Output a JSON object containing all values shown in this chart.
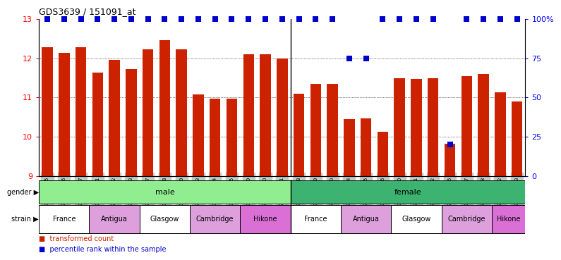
{
  "title": "GDS3639 / 151091_at",
  "samples": [
    "GSM231205",
    "GSM231206",
    "GSM231207",
    "GSM231211",
    "GSM231212",
    "GSM231213",
    "GSM231217",
    "GSM231218",
    "GSM231219",
    "GSM231223",
    "GSM231224",
    "GSM231225",
    "GSM231229",
    "GSM231230",
    "GSM231231",
    "GSM231208",
    "GSM231209",
    "GSM231210",
    "GSM231214",
    "GSM231215",
    "GSM231216",
    "GSM231220",
    "GSM231221",
    "GSM231222",
    "GSM231226",
    "GSM231227",
    "GSM231228",
    "GSM231232",
    "GSM231233"
  ],
  "values": [
    12.28,
    12.13,
    12.28,
    11.63,
    11.95,
    11.73,
    12.22,
    12.45,
    12.22,
    11.07,
    10.97,
    10.97,
    12.1,
    12.1,
    12.0,
    11.1,
    11.35,
    11.35,
    10.45,
    10.47,
    10.13,
    11.48,
    11.47,
    11.48,
    9.82,
    11.55,
    11.6,
    11.13,
    10.9
  ],
  "percentile": [
    100,
    100,
    100,
    100,
    100,
    100,
    100,
    100,
    100,
    100,
    100,
    100,
    100,
    100,
    100,
    100,
    100,
    100,
    75,
    75,
    100,
    100,
    100,
    100,
    20,
    100,
    100,
    100,
    100
  ],
  "bar_color": "#CC2200",
  "dot_color": "#0000CC",
  "ylim_left": [
    9,
    13
  ],
  "ylim_right": [
    0,
    100
  ],
  "yticks_left": [
    9,
    10,
    11,
    12,
    13
  ],
  "yticks_right_vals": [
    0,
    25,
    50,
    75,
    100
  ],
  "yticks_right_labels": [
    "0",
    "25",
    "50",
    "75",
    "100%"
  ],
  "bar_width": 0.65,
  "dot_size": 40,
  "male_count": 15,
  "gender_groups": [
    {
      "label": "male",
      "start": 0,
      "end": 15,
      "color": "#90EE90"
    },
    {
      "label": "female",
      "start": 15,
      "end": 29,
      "color": "#3CB371"
    }
  ],
  "strain_groups": [
    {
      "label": "France",
      "start": 0,
      "end": 3,
      "color": "#FFFFFF"
    },
    {
      "label": "Antigua",
      "start": 3,
      "end": 6,
      "color": "#DDA0DD"
    },
    {
      "label": "Glasgow",
      "start": 6,
      "end": 9,
      "color": "#FFFFFF"
    },
    {
      "label": "Cambridge",
      "start": 9,
      "end": 12,
      "color": "#DDA0DD"
    },
    {
      "label": "Hikone",
      "start": 12,
      "end": 15,
      "color": "#DA70D6"
    },
    {
      "label": "France",
      "start": 15,
      "end": 18,
      "color": "#FFFFFF"
    },
    {
      "label": "Antigua",
      "start": 18,
      "end": 21,
      "color": "#DDA0DD"
    },
    {
      "label": "Glasgow",
      "start": 21,
      "end": 24,
      "color": "#FFFFFF"
    },
    {
      "label": "Cambridge",
      "start": 24,
      "end": 27,
      "color": "#DDA0DD"
    },
    {
      "label": "Hikone",
      "start": 27,
      "end": 29,
      "color": "#DA70D6"
    }
  ],
  "ticklabel_bg": "#C8C8C8",
  "female_color": "#32CD32"
}
